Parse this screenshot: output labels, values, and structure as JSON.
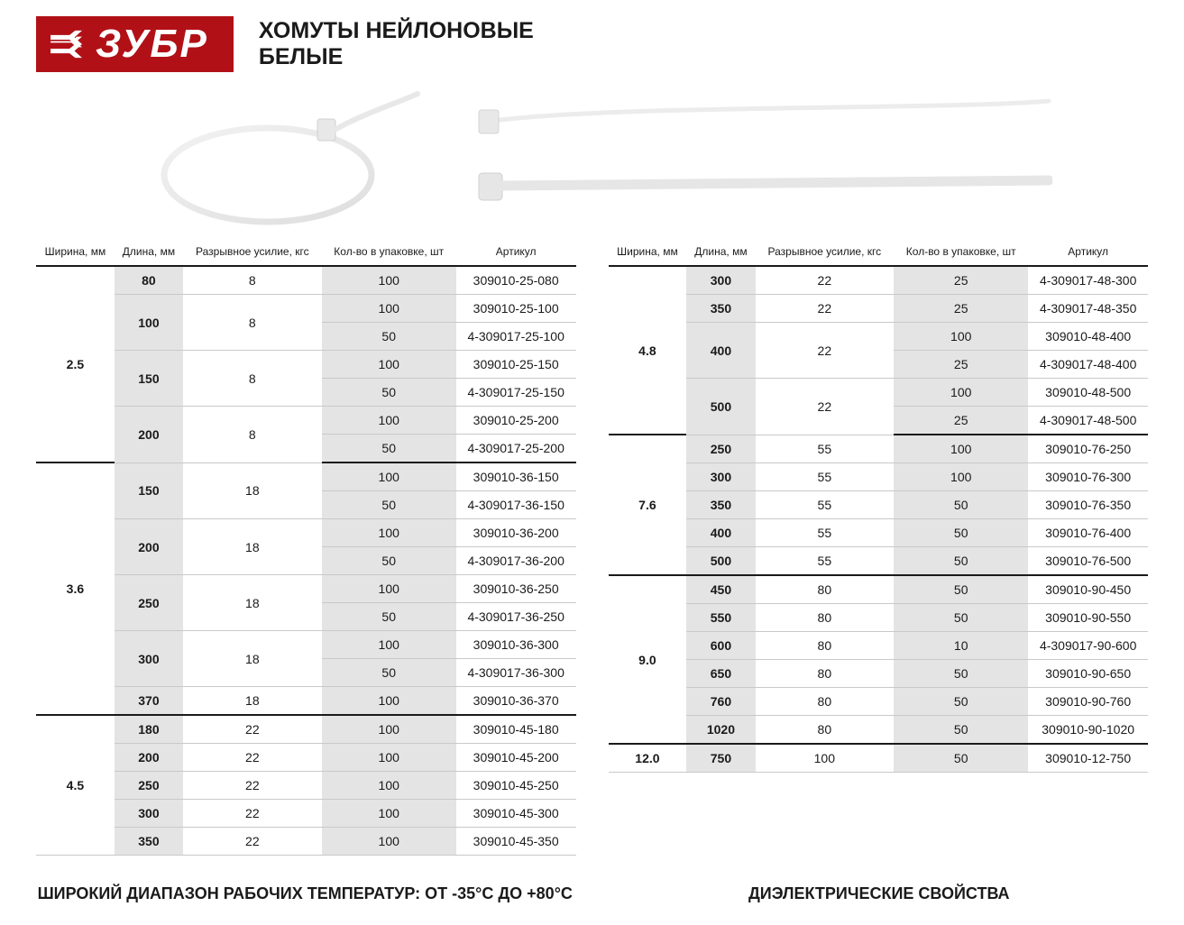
{
  "brand": "ЗУБР",
  "title_line1": "ХОМУТЫ НЕЙЛОНОВЫЕ",
  "title_line2": "БЕЛЫЕ",
  "columns": [
    "Ширина, мм",
    "Длина, мм",
    "Разрывное усилие, кгс",
    "Кол-во в упаковке, шт",
    "Артикул"
  ],
  "colors": {
    "brand_bg": "#b11116",
    "brand_fg": "#ffffff",
    "border_heavy": "#1a1a1a",
    "border_light": "#c9c9c9",
    "shade": "#e4e4e4",
    "text": "#1a1a1a",
    "page_bg": "#ffffff"
  },
  "footer_left": "ШИРОКИЙ ДИАПАЗОН РАБОЧИХ ТЕМПЕРАТУР: ОТ -35°С ДО +80°С",
  "footer_right": "ДИЭЛЕКТРИЧЕСКИЕ СВОЙСТВА",
  "left_table": [
    {
      "width": "2.5",
      "groupEnd": true,
      "lengths": [
        {
          "len": "80",
          "force": "8",
          "rows": [
            {
              "qty": "100",
              "sku": "309010-25-080"
            }
          ]
        },
        {
          "len": "100",
          "force": "8",
          "rows": [
            {
              "qty": "100",
              "sku": "309010-25-100"
            },
            {
              "qty": "50",
              "sku": "4-309017-25-100"
            }
          ]
        },
        {
          "len": "150",
          "force": "8",
          "rows": [
            {
              "qty": "100",
              "sku": "309010-25-150"
            },
            {
              "qty": "50",
              "sku": "4-309017-25-150"
            }
          ]
        },
        {
          "len": "200",
          "force": "8",
          "rows": [
            {
              "qty": "100",
              "sku": "309010-25-200"
            },
            {
              "qty": "50",
              "sku": "4-309017-25-200"
            }
          ]
        }
      ]
    },
    {
      "width": "3.6",
      "groupEnd": true,
      "lengths": [
        {
          "len": "150",
          "force": "18",
          "rows": [
            {
              "qty": "100",
              "sku": "309010-36-150"
            },
            {
              "qty": "50",
              "sku": "4-309017-36-150"
            }
          ]
        },
        {
          "len": "200",
          "force": "18",
          "rows": [
            {
              "qty": "100",
              "sku": "309010-36-200"
            },
            {
              "qty": "50",
              "sku": "4-309017-36-200"
            }
          ]
        },
        {
          "len": "250",
          "force": "18",
          "rows": [
            {
              "qty": "100",
              "sku": "309010-36-250"
            },
            {
              "qty": "50",
              "sku": "4-309017-36-250"
            }
          ]
        },
        {
          "len": "300",
          "force": "18",
          "rows": [
            {
              "qty": "100",
              "sku": "309010-36-300"
            },
            {
              "qty": "50",
              "sku": "4-309017-36-300"
            }
          ]
        },
        {
          "len": "370",
          "force": "18",
          "rows": [
            {
              "qty": "100",
              "sku": "309010-36-370"
            }
          ]
        }
      ]
    },
    {
      "width": "4.5",
      "groupEnd": false,
      "lengths": [
        {
          "len": "180",
          "force": "22",
          "rows": [
            {
              "qty": "100",
              "sku": "309010-45-180"
            }
          ]
        },
        {
          "len": "200",
          "force": "22",
          "rows": [
            {
              "qty": "100",
              "sku": "309010-45-200"
            }
          ]
        },
        {
          "len": "250",
          "force": "22",
          "rows": [
            {
              "qty": "100",
              "sku": "309010-45-250"
            }
          ]
        },
        {
          "len": "300",
          "force": "22",
          "rows": [
            {
              "qty": "100",
              "sku": "309010-45-300"
            }
          ]
        },
        {
          "len": "350",
          "force": "22",
          "rows": [
            {
              "qty": "100",
              "sku": "309010-45-350"
            }
          ]
        }
      ]
    }
  ],
  "right_table": [
    {
      "width": "4.8",
      "groupEnd": true,
      "lengths": [
        {
          "len": "300",
          "force": "22",
          "rows": [
            {
              "qty": "25",
              "sku": "4-309017-48-300"
            }
          ]
        },
        {
          "len": "350",
          "force": "22",
          "rows": [
            {
              "qty": "25",
              "sku": "4-309017-48-350"
            }
          ]
        },
        {
          "len": "400",
          "force": "22",
          "rows": [
            {
              "qty": "100",
              "sku": "309010-48-400"
            },
            {
              "qty": "25",
              "sku": "4-309017-48-400"
            }
          ]
        },
        {
          "len": "500",
          "force": "22",
          "rows": [
            {
              "qty": "100",
              "sku": "309010-48-500"
            },
            {
              "qty": "25",
              "sku": "4-309017-48-500"
            }
          ]
        }
      ]
    },
    {
      "width": "7.6",
      "groupEnd": true,
      "lengths": [
        {
          "len": "250",
          "force": "55",
          "rows": [
            {
              "qty": "100",
              "sku": "309010-76-250"
            }
          ]
        },
        {
          "len": "300",
          "force": "55",
          "rows": [
            {
              "qty": "100",
              "sku": "309010-76-300"
            }
          ]
        },
        {
          "len": "350",
          "force": "55",
          "rows": [
            {
              "qty": "50",
              "sku": "309010-76-350"
            }
          ]
        },
        {
          "len": "400",
          "force": "55",
          "rows": [
            {
              "qty": "50",
              "sku": "309010-76-400"
            }
          ]
        },
        {
          "len": "500",
          "force": "55",
          "rows": [
            {
              "qty": "50",
              "sku": "309010-76-500"
            }
          ]
        }
      ]
    },
    {
      "width": "9.0",
      "groupEnd": true,
      "lengths": [
        {
          "len": "450",
          "force": "80",
          "rows": [
            {
              "qty": "50",
              "sku": "309010-90-450"
            }
          ]
        },
        {
          "len": "550",
          "force": "80",
          "rows": [
            {
              "qty": "50",
              "sku": "309010-90-550"
            }
          ]
        },
        {
          "len": "600",
          "force": "80",
          "rows": [
            {
              "qty": "10",
              "sku": "4-309017-90-600"
            }
          ]
        },
        {
          "len": "650",
          "force": "80",
          "rows": [
            {
              "qty": "50",
              "sku": "309010-90-650"
            }
          ]
        },
        {
          "len": "760",
          "force": "80",
          "rows": [
            {
              "qty": "50",
              "sku": "309010-90-760"
            }
          ]
        },
        {
          "len": "1020",
          "force": "80",
          "rows": [
            {
              "qty": "50",
              "sku": "309010-90-1020"
            }
          ]
        }
      ]
    },
    {
      "width": "12.0",
      "groupEnd": false,
      "lengths": [
        {
          "len": "750",
          "force": "100",
          "rows": [
            {
              "qty": "50",
              "sku": "309010-12-750"
            }
          ]
        }
      ]
    }
  ]
}
